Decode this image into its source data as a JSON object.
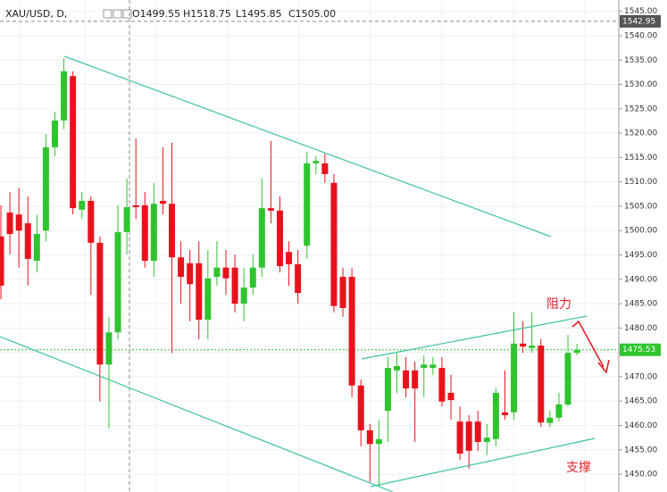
{
  "chart_data": {
    "type": "candlestick",
    "symbol": "XAU/USD, D,",
    "ohlc_header": {
      "open": "O1499.55",
      "high": "H1518.75",
      "low": "L1495.85",
      "close": "C1505.00"
    },
    "open": [
      1498.8,
      1503.7,
      1503.3,
      1501.5,
      1493.8,
      1500.0,
      1517.1,
      1522.6,
      1531.7,
      1504.3,
      1506.1,
      1497.5,
      1472.5,
      1479.1,
      1499.7,
      1505.2,
      1505.2,
      1493.8,
      1506.1,
      1505.5,
      1494.5,
      1493.3,
      1493.3,
      1481.7,
      1490.5,
      1492.4,
      1492.4,
      1485.0,
      1488.3,
      1492.4,
      1504.6,
      1504.1,
      1495.6,
      1493.1,
      1496.9,
      1513.8,
      1513.8,
      1509.8,
      1490.5,
      1490.5,
      1468.2,
      1459.0,
      1456.2,
      1463.0,
      1471.3,
      1471.3,
      1471.3,
      1471.8,
      1471.8,
      1471.8,
      1466.7,
      1460.8,
      1460.8,
      1460.8,
      1456.6,
      1457.2,
      1462.7,
      1462.7,
      1476.8,
      1475.9,
      1476.4,
      1460.5,
      1461.6,
      1464.3,
      1474.9
    ],
    "high": [
      1505.2,
      1507.9,
      1508.8,
      1507.0,
      1503.3,
      1519.8,
      1524.4,
      1535.4,
      1532.7,
      1507.9,
      1507.0,
      1498.8,
      1482.3,
      1505.2,
      1510.7,
      1518.9,
      1507.9,
      1509.8,
      1517.1,
      1518.0,
      1497.8,
      1496.0,
      1497.8,
      1496.0,
      1497.8,
      1496.0,
      1495.1,
      1492.4,
      1495.1,
      1510.7,
      1518.4,
      1507.0,
      1497.8,
      1496.0,
      1516.2,
      1515.3,
      1515.8,
      1511.6,
      1492.4,
      1492.4,
      1469.4,
      1460.3,
      1461.2,
      1474.0,
      1474.9,
      1474.0,
      1473.1,
      1474.4,
      1474.0,
      1474.0,
      1470.4,
      1463.9,
      1462.1,
      1463.0,
      1460.3,
      1467.6,
      1471.3,
      1483.2,
      1481.4,
      1483.2,
      1477.7,
      1463.0,
      1466.7,
      1478.6,
      1476.8
    ],
    "low": [
      1485.9,
      1495.1,
      1492.4,
      1488.7,
      1491.4,
      1497.8,
      1515.3,
      1520.8,
      1503.3,
      1502.4,
      1486.8,
      1464.9,
      1459.4,
      1477.7,
      1495.1,
      1502.4,
      1492.4,
      1490.5,
      1503.3,
      1474.9,
      1485.0,
      1481.4,
      1477.7,
      1477.7,
      1488.7,
      1486.8,
      1483.2,
      1481.4,
      1486.8,
      1490.5,
      1501.5,
      1491.4,
      1488.7,
      1485.0,
      1494.2,
      1511.6,
      1509.8,
      1483.2,
      1482.3,
      1465.8,
      1455.7,
      1448.4,
      1447.4,
      1456.6,
      1466.7,
      1465.8,
      1456.6,
      1465.8,
      1470.4,
      1463.9,
      1461.2,
      1452.9,
      1451.1,
      1454.8,
      1453.9,
      1455.7,
      1461.2,
      1461.2,
      1474.9,
      1474.9,
      1459.7,
      1459.7,
      1460.8,
      1463.9,
      1474.4
    ],
    "close": [
      1488.7,
      1499.3,
      1500.0,
      1494.2,
      1499.3,
      1517.1,
      1522.6,
      1532.7,
      1504.6,
      1506.1,
      1497.5,
      1472.5,
      1479.1,
      1499.7,
      1504.8,
      1504.8,
      1493.8,
      1505.5,
      1505.5,
      1494.5,
      1490.5,
      1489.0,
      1481.7,
      1490.2,
      1492.4,
      1490.2,
      1485.0,
      1488.3,
      1492.4,
      1504.6,
      1504.1,
      1492.7,
      1493.1,
      1487.2,
      1513.8,
      1514.3,
      1511.6,
      1484.5,
      1484.1,
      1468.2,
      1459.0,
      1456.2,
      1457.2,
      1471.8,
      1472.2,
      1467.6,
      1467.6,
      1472.5,
      1472.5,
      1464.9,
      1465.2,
      1454.2,
      1454.8,
      1456.6,
      1457.5,
      1466.7,
      1462.1,
      1476.8,
      1476.2,
      1476.4,
      1460.6,
      1461.6,
      1464.3,
      1474.9,
      1475.5
    ],
    "up_color": "#2fc42f",
    "down_color": "#e8121c",
    "ylim": [
      1446.34,
      1547.33
    ],
    "yticks": [
      {
        "value": 1450,
        "label": "1450.00"
      },
      {
        "value": 1455,
        "label": "1455.00"
      },
      {
        "value": 1460,
        "label": "1460.00"
      },
      {
        "value": 1465,
        "label": "1465.00"
      },
      {
        "value": 1470,
        "label": "1470.00"
      },
      {
        "value": 1475,
        "label": "1475.00"
      },
      {
        "value": 1480,
        "label": "1480.00"
      },
      {
        "value": 1485,
        "label": "1485.00"
      },
      {
        "value": 1490,
        "label": "1490.00"
      },
      {
        "value": 1495,
        "label": "1495.00"
      },
      {
        "value": 1500,
        "label": "1500.00"
      },
      {
        "value": 1505,
        "label": "1505.00"
      },
      {
        "value": 1510,
        "label": "1510.00"
      },
      {
        "value": 1515,
        "label": "1515.00"
      },
      {
        "value": 1520,
        "label": "1520.00"
      },
      {
        "value": 1525,
        "label": "1525.00"
      },
      {
        "value": 1530,
        "label": "1530.00"
      },
      {
        "value": 1535,
        "label": "1535.00"
      },
      {
        "value": 1540,
        "label": "1540.00"
      },
      {
        "value": 1545,
        "label": "1545.00"
      }
    ],
    "last_price": 1475.53,
    "last_price_color": "#2fc42f",
    "crosshair_price": 1542.95,
    "annotations": {
      "resistance": "阻力",
      "support": "支撑"
    }
  }
}
